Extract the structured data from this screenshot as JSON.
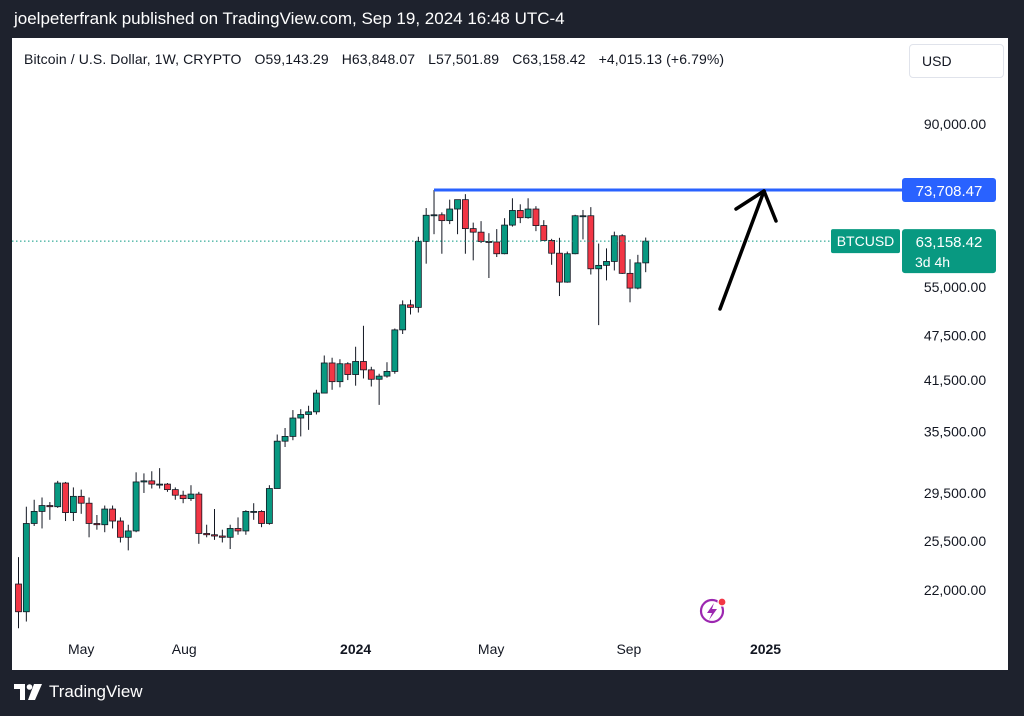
{
  "header": {
    "caption": "joelpeterfrank published on TradingView.com, Sep 19, 2024 16:48 UTC-4"
  },
  "legend": {
    "symbol": "Bitcoin / U.S. Dollar, 1W, CRYPTO",
    "open": "O59,143.29",
    "high": "H63,848.07",
    "low": "L57,501.89",
    "close": "C63,158.42",
    "change": "+4,015.13 (+6.79%)"
  },
  "currency": "USD",
  "brand": "TradingView",
  "colors": {
    "up": "#089981",
    "down": "#f23645",
    "resistance_line": "#2962ff",
    "price_tag": "#089981",
    "accent_icon": "#9c27b0"
  },
  "markers": {
    "resistance_label": "73,708.47",
    "symbol_tag": "BTCUSD",
    "last_price_label": "63,158.42",
    "countdown_label": "3d 4h"
  },
  "chart_data": {
    "type": "candlestick",
    "symbol": "BTCUSD",
    "interval": "1W",
    "x_tick_labels": [
      "May",
      "Aug",
      "2024",
      "May",
      "Sep",
      "2025"
    ],
    "y_tick_labels": [
      "22,000.00",
      "25,500.00",
      "29,500.00",
      "35,500.00",
      "41,500.00",
      "47,500.00",
      "55,000.00",
      "73,708.47",
      "90,000.00"
    ],
    "y_scale": "log",
    "horizontal_levels": [
      {
        "value": 73708.47
      },
      {
        "value": 63158.42
      }
    ],
    "candles": [
      {
        "x": "2023-03-06",
        "o": 22400,
        "h": 24300,
        "l": 19600,
        "c": 20600
      },
      {
        "x": "2023-03-13",
        "o": 20600,
        "h": 28300,
        "l": 20000,
        "c": 26900
      },
      {
        "x": "2023-03-20",
        "o": 26900,
        "h": 28900,
        "l": 26700,
        "c": 27900
      },
      {
        "x": "2023-03-27",
        "o": 27900,
        "h": 29100,
        "l": 26500,
        "c": 28400
      },
      {
        "x": "2023-04-03",
        "o": 28400,
        "h": 28700,
        "l": 27200,
        "c": 28300
      },
      {
        "x": "2023-04-10",
        "o": 28300,
        "h": 30600,
        "l": 28200,
        "c": 30400
      },
      {
        "x": "2023-04-17",
        "o": 30400,
        "h": 30500,
        "l": 27100,
        "c": 27800
      },
      {
        "x": "2023-04-24",
        "o": 27800,
        "h": 30000,
        "l": 27100,
        "c": 29200
      },
      {
        "x": "2023-05-01",
        "o": 29200,
        "h": 29800,
        "l": 27700,
        "c": 28600
      },
      {
        "x": "2023-05-08",
        "o": 28600,
        "h": 29100,
        "l": 25800,
        "c": 26900
      },
      {
        "x": "2023-05-15",
        "o": 26900,
        "h": 27600,
        "l": 26400,
        "c": 26800
      },
      {
        "x": "2023-05-22",
        "o": 26800,
        "h": 28400,
        "l": 26200,
        "c": 28100
      },
      {
        "x": "2023-05-29",
        "o": 28100,
        "h": 28400,
        "l": 26500,
        "c": 27100
      },
      {
        "x": "2023-06-05",
        "o": 27100,
        "h": 27400,
        "l": 25400,
        "c": 25800
      },
      {
        "x": "2023-06-12",
        "o": 25800,
        "h": 26800,
        "l": 24800,
        "c": 26300
      },
      {
        "x": "2023-06-19",
        "o": 26300,
        "h": 31400,
        "l": 26200,
        "c": 30500
      },
      {
        "x": "2023-06-26",
        "o": 30500,
        "h": 31300,
        "l": 29500,
        "c": 30600
      },
      {
        "x": "2023-07-03",
        "o": 30600,
        "h": 31500,
        "l": 29900,
        "c": 30300
      },
      {
        "x": "2023-07-10",
        "o": 30300,
        "h": 31800,
        "l": 29900,
        "c": 30300
      },
      {
        "x": "2023-07-17",
        "o": 30300,
        "h": 30400,
        "l": 29600,
        "c": 29800
      },
      {
        "x": "2023-07-24",
        "o": 29800,
        "h": 30000,
        "l": 28900,
        "c": 29300
      },
      {
        "x": "2023-07-31",
        "o": 29300,
        "h": 29700,
        "l": 28600,
        "c": 29000
      },
      {
        "x": "2023-08-07",
        "o": 29000,
        "h": 30200,
        "l": 28800,
        "c": 29400
      },
      {
        "x": "2023-08-14",
        "o": 29400,
        "h": 29600,
        "l": 25300,
        "c": 26100
      },
      {
        "x": "2023-08-21",
        "o": 26100,
        "h": 26800,
        "l": 25800,
        "c": 26000
      },
      {
        "x": "2023-08-28",
        "o": 26000,
        "h": 28100,
        "l": 25600,
        "c": 25900
      },
      {
        "x": "2023-09-04",
        "o": 25900,
        "h": 26400,
        "l": 25400,
        "c": 25800
      },
      {
        "x": "2023-09-11",
        "o": 25800,
        "h": 26800,
        "l": 24900,
        "c": 26500
      },
      {
        "x": "2023-09-18",
        "o": 26500,
        "h": 27400,
        "l": 26000,
        "c": 26300
      },
      {
        "x": "2023-09-25",
        "o": 26300,
        "h": 28000,
        "l": 26000,
        "c": 27900
      },
      {
        "x": "2023-10-02",
        "o": 27900,
        "h": 28600,
        "l": 27200,
        "c": 27900
      },
      {
        "x": "2023-10-09",
        "o": 27900,
        "h": 28000,
        "l": 26600,
        "c": 26900
      },
      {
        "x": "2023-10-16",
        "o": 26900,
        "h": 30200,
        "l": 26800,
        "c": 29900
      },
      {
        "x": "2023-10-23",
        "o": 29900,
        "h": 35200,
        "l": 29900,
        "c": 34500
      },
      {
        "x": "2023-10-30",
        "o": 34500,
        "h": 35900,
        "l": 33900,
        "c": 35000
      },
      {
        "x": "2023-11-06",
        "o": 35000,
        "h": 37900,
        "l": 34600,
        "c": 37000
      },
      {
        "x": "2023-11-13",
        "o": 37000,
        "h": 38000,
        "l": 35000,
        "c": 37400
      },
      {
        "x": "2023-11-20",
        "o": 37400,
        "h": 38400,
        "l": 35700,
        "c": 37700
      },
      {
        "x": "2023-11-27",
        "o": 37700,
        "h": 40300,
        "l": 37400,
        "c": 39900
      },
      {
        "x": "2023-12-04",
        "o": 39900,
        "h": 44700,
        "l": 39900,
        "c": 43700
      },
      {
        "x": "2023-12-11",
        "o": 43700,
        "h": 44400,
        "l": 40300,
        "c": 41300
      },
      {
        "x": "2023-12-18",
        "o": 41300,
        "h": 44200,
        "l": 40600,
        "c": 43600
      },
      {
        "x": "2023-12-25",
        "o": 43600,
        "h": 43800,
        "l": 41500,
        "c": 42200
      },
      {
        "x": "2024-01-01",
        "o": 42200,
        "h": 45900,
        "l": 40800,
        "c": 43900
      },
      {
        "x": "2024-01-08",
        "o": 43900,
        "h": 48900,
        "l": 41700,
        "c": 42800
      },
      {
        "x": "2024-01-15",
        "o": 42800,
        "h": 43200,
        "l": 40700,
        "c": 41600
      },
      {
        "x": "2024-01-22",
        "o": 41600,
        "h": 42300,
        "l": 38500,
        "c": 42000
      },
      {
        "x": "2024-01-29",
        "o": 42000,
        "h": 43800,
        "l": 41800,
        "c": 42600
      },
      {
        "x": "2024-02-05",
        "o": 42600,
        "h": 48500,
        "l": 42300,
        "c": 48300
      },
      {
        "x": "2024-02-12",
        "o": 48300,
        "h": 52800,
        "l": 47700,
        "c": 52100
      },
      {
        "x": "2024-02-19",
        "o": 52100,
        "h": 52900,
        "l": 50600,
        "c": 51700
      },
      {
        "x": "2024-02-26",
        "o": 51700,
        "h": 64000,
        "l": 50900,
        "c": 63100
      },
      {
        "x": "2024-03-04",
        "o": 63100,
        "h": 69800,
        "l": 59000,
        "c": 68300
      },
      {
        "x": "2024-03-11",
        "o": 68300,
        "h": 73708,
        "l": 64500,
        "c": 68400
      },
      {
        "x": "2024-03-18",
        "o": 68400,
        "h": 68900,
        "l": 60800,
        "c": 67200
      },
      {
        "x": "2024-03-25",
        "o": 67200,
        "h": 71600,
        "l": 66500,
        "c": 69600
      },
      {
        "x": "2024-04-01",
        "o": 69600,
        "h": 71200,
        "l": 64500,
        "c": 71600
      },
      {
        "x": "2024-04-08",
        "o": 71600,
        "h": 72800,
        "l": 60800,
        "c": 65600
      },
      {
        "x": "2024-04-15",
        "o": 65600,
        "h": 66800,
        "l": 59600,
        "c": 64900
      },
      {
        "x": "2024-04-22",
        "o": 64900,
        "h": 67100,
        "l": 62800,
        "c": 63100
      },
      {
        "x": "2024-04-29",
        "o": 63100,
        "h": 64700,
        "l": 56500,
        "c": 63000
      },
      {
        "x": "2024-05-06",
        "o": 63000,
        "h": 65500,
        "l": 60200,
        "c": 60800
      },
      {
        "x": "2024-05-13",
        "o": 60800,
        "h": 67700,
        "l": 60700,
        "c": 66300
      },
      {
        "x": "2024-05-20",
        "o": 66300,
        "h": 71900,
        "l": 66000,
        "c": 69300
      },
      {
        "x": "2024-05-27",
        "o": 69300,
        "h": 70600,
        "l": 66700,
        "c": 67800
      },
      {
        "x": "2024-06-03",
        "o": 67800,
        "h": 71900,
        "l": 67600,
        "c": 69600
      },
      {
        "x": "2024-06-10",
        "o": 69600,
        "h": 70200,
        "l": 65100,
        "c": 66200
      },
      {
        "x": "2024-06-17",
        "o": 66200,
        "h": 67300,
        "l": 63400,
        "c": 63300
      },
      {
        "x": "2024-06-24",
        "o": 63300,
        "h": 63600,
        "l": 58800,
        "c": 60900
      },
      {
        "x": "2024-07-01",
        "o": 60900,
        "h": 63800,
        "l": 53500,
        "c": 55800
      },
      {
        "x": "2024-07-08",
        "o": 55800,
        "h": 61200,
        "l": 55700,
        "c": 60800
      },
      {
        "x": "2024-07-15",
        "o": 60800,
        "h": 68400,
        "l": 60700,
        "c": 68200
      },
      {
        "x": "2024-07-22",
        "o": 68200,
        "h": 69400,
        "l": 63500,
        "c": 68200
      },
      {
        "x": "2024-07-29",
        "o": 68200,
        "h": 70000,
        "l": 57100,
        "c": 58100
      },
      {
        "x": "2024-08-05",
        "o": 58100,
        "h": 62700,
        "l": 49000,
        "c": 58700
      },
      {
        "x": "2024-08-12",
        "o": 58700,
        "h": 61800,
        "l": 56100,
        "c": 59400
      },
      {
        "x": "2024-08-19",
        "o": 59400,
        "h": 65000,
        "l": 57800,
        "c": 64200
      },
      {
        "x": "2024-08-26",
        "o": 64200,
        "h": 64500,
        "l": 57200,
        "c": 57300
      },
      {
        "x": "2024-09-02",
        "o": 57300,
        "h": 59800,
        "l": 52500,
        "c": 54800
      },
      {
        "x": "2024-09-09",
        "o": 54800,
        "h": 60600,
        "l": 54600,
        "c": 59143
      },
      {
        "x": "2024-09-16",
        "o": 59143.29,
        "h": 63848.07,
        "l": 57501.89,
        "c": 63158.42
      }
    ]
  }
}
